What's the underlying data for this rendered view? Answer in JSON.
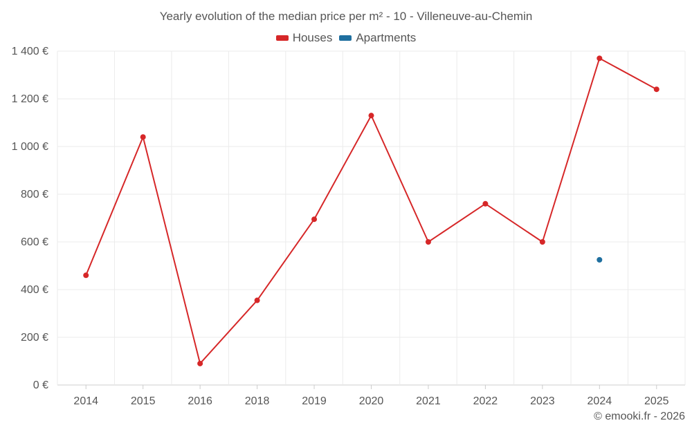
{
  "chart_data": {
    "type": "line",
    "title": "Yearly evolution of the median price per m² - 10 - Villeneuve-au-Chemin",
    "categories": [
      "2014",
      "2015",
      "2016",
      "2018",
      "2019",
      "2020",
      "2021",
      "2022",
      "2023",
      "2024",
      "2025"
    ],
    "series": [
      {
        "name": "Houses",
        "color": "#d62728",
        "values": [
          460,
          1040,
          90,
          355,
          695,
          1130,
          600,
          760,
          600,
          1370,
          1240
        ]
      },
      {
        "name": "Apartments",
        "color": "#1f6f9f",
        "values": [
          null,
          null,
          null,
          null,
          null,
          null,
          null,
          null,
          null,
          525,
          null
        ]
      }
    ],
    "yticks": [
      "0 €",
      "200 €",
      "400 €",
      "600 €",
      "800 €",
      "1 000 €",
      "1 200 €",
      "1 400 €"
    ],
    "ylim": [
      0,
      1400
    ],
    "xlabel": "",
    "ylabel": "",
    "grid": true,
    "legend_position": "top-center"
  },
  "credit": "© emooki.fr - 2026"
}
